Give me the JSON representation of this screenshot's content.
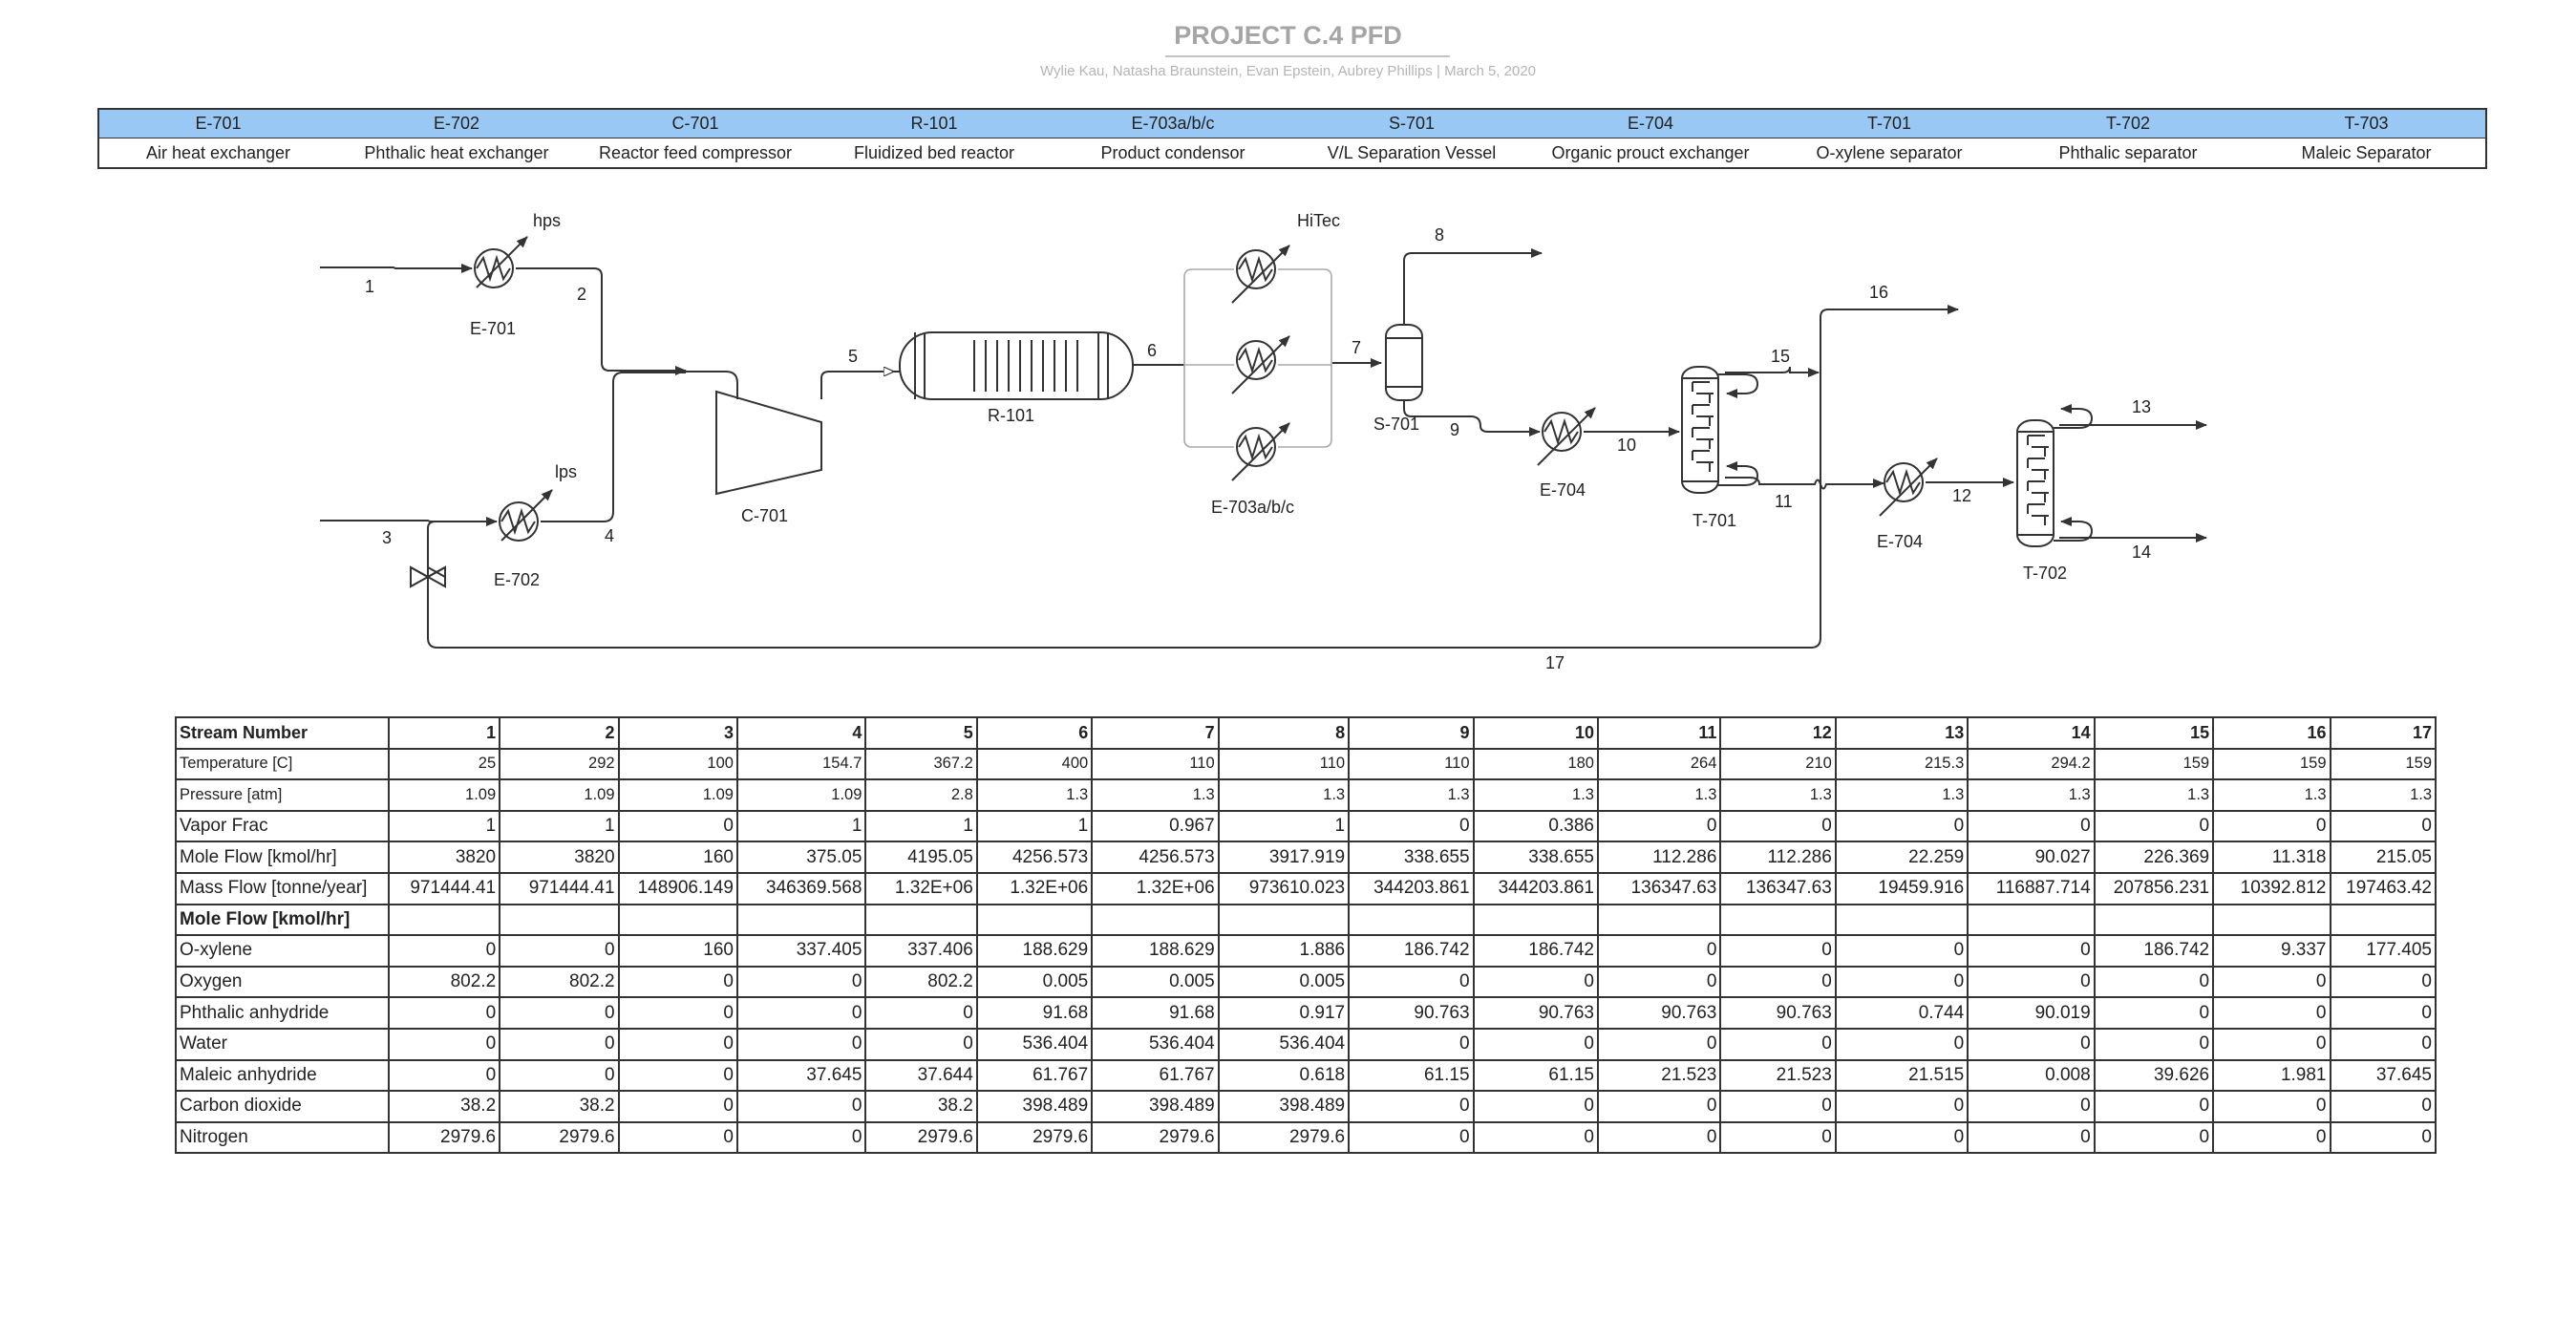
{
  "header": {
    "title": "PROJECT C.4 PFD",
    "subtitle": "Wylie Kau, Natasha Braunstein, Evan Epstein, Aubrey Phillips  |  March 5, 2020"
  },
  "equipment": [
    {
      "tag": "E-701",
      "desc": "Air heat exchanger"
    },
    {
      "tag": "E-702",
      "desc": "Phthalic heat exchanger"
    },
    {
      "tag": "C-701",
      "desc": "Reactor feed compressor"
    },
    {
      "tag": "R-101",
      "desc": "Fluidized bed reactor"
    },
    {
      "tag": "E-703a/b/c",
      "desc": "Product condensor"
    },
    {
      "tag": "S-701",
      "desc": "V/L Separation Vessel"
    },
    {
      "tag": "E-704",
      "desc": "Organic prouct exchanger"
    },
    {
      "tag": "T-701",
      "desc": "O-xylene separator"
    },
    {
      "tag": "T-702",
      "desc": "Phthalic separator"
    },
    {
      "tag": "T-703",
      "desc": "Maleic Separator"
    }
  ],
  "diagram": {
    "utility_labels": {
      "hps": "hps",
      "lps": "lps",
      "hitec": "HiTec"
    },
    "unit_labels": {
      "e701": "E-701",
      "e702": "E-702",
      "c701": "C-701",
      "r101": "R-101",
      "e703": "E-703a/b/c",
      "s701": "S-701",
      "e704a": "E-704",
      "t701": "T-701",
      "e704b": "E-704",
      "t702": "T-702"
    },
    "stream_numbers": {
      "s1": "1",
      "s2": "2",
      "s3": "3",
      "s4": "4",
      "s5": "5",
      "s6": "6",
      "s7": "7",
      "s8": "8",
      "s9": "9",
      "s10": "10",
      "s11": "11",
      "s12": "12",
      "s13": "13",
      "s14": "14",
      "s15": "15",
      "s16": "16",
      "s17": "17"
    }
  },
  "stream_table": {
    "header_label": "Stream Number",
    "stream_numbers": [
      "1",
      "2",
      "3",
      "4",
      "5",
      "6",
      "7",
      "8",
      "9",
      "10",
      "11",
      "12",
      "13",
      "14",
      "15",
      "16",
      "17"
    ],
    "rows": [
      {
        "label": "Temperature [C]",
        "small": true,
        "values": [
          "25",
          "292",
          "100",
          "154.7",
          "367.2",
          "400",
          "110",
          "110",
          "110",
          "180",
          "264",
          "210",
          "215.3",
          "294.2",
          "159",
          "159",
          "159"
        ]
      },
      {
        "label": "Pressure [atm]",
        "small": true,
        "values": [
          "1.09",
          "1.09",
          "1.09",
          "1.09",
          "2.8",
          "1.3",
          "1.3",
          "1.3",
          "1.3",
          "1.3",
          "1.3",
          "1.3",
          "1.3",
          "1.3",
          "1.3",
          "1.3",
          "1.3"
        ]
      },
      {
        "label": "Vapor Frac",
        "values": [
          "1",
          "1",
          "0",
          "1",
          "1",
          "1",
          "0.967",
          "1",
          "0",
          "0.386",
          "0",
          "0",
          "0",
          "0",
          "0",
          "0",
          "0"
        ]
      },
      {
        "label": "Mole Flow [kmol/hr]",
        "values": [
          "3820",
          "3820",
          "160",
          "375.05",
          "4195.05",
          "4256.573",
          "4256.573",
          "3917.919",
          "338.655",
          "338.655",
          "112.286",
          "112.286",
          "22.259",
          "90.027",
          "226.369",
          "11.318",
          "215.05"
        ]
      },
      {
        "label": "Mass Flow [tonne/year]",
        "values": [
          "971444.41",
          "971444.41",
          "148906.149",
          "346369.568",
          "1.32E+06",
          "1.32E+06",
          "1.32E+06",
          "973610.023",
          "344203.861",
          "344203.861",
          "136347.63",
          "136347.63",
          "19459.916",
          "116887.714",
          "207856.231",
          "10392.812",
          "197463.42"
        ]
      },
      {
        "label": "Mole Flow [kmol/hr]",
        "section": true,
        "values": [
          "",
          "",
          "",
          "",
          "",
          "",
          "",
          "",
          "",
          "",
          "",
          "",
          "",
          "",
          "",
          "",
          ""
        ]
      },
      {
        "label": "O-xylene",
        "values": [
          "0",
          "0",
          "160",
          "337.405",
          "337.406",
          "188.629",
          "188.629",
          "1.886",
          "186.742",
          "186.742",
          "0",
          "0",
          "0",
          "0",
          "186.742",
          "9.337",
          "177.405"
        ]
      },
      {
        "label": "Oxygen",
        "values": [
          "802.2",
          "802.2",
          "0",
          "0",
          "802.2",
          "0.005",
          "0.005",
          "0.005",
          "0",
          "0",
          "0",
          "0",
          "0",
          "0",
          "0",
          "0",
          "0"
        ]
      },
      {
        "label": "Phthalic anhydride",
        "values": [
          "0",
          "0",
          "0",
          "0",
          "0",
          "91.68",
          "91.68",
          "0.917",
          "90.763",
          "90.763",
          "90.763",
          "90.763",
          "0.744",
          "90.019",
          "0",
          "0",
          "0"
        ]
      },
      {
        "label": "Water",
        "values": [
          "0",
          "0",
          "0",
          "0",
          "0",
          "536.404",
          "536.404",
          "536.404",
          "0",
          "0",
          "0",
          "0",
          "0",
          "0",
          "0",
          "0",
          "0"
        ]
      },
      {
        "label": "Maleic anhydride",
        "values": [
          "0",
          "0",
          "0",
          "37.645",
          "37.644",
          "61.767",
          "61.767",
          "0.618",
          "61.15",
          "61.15",
          "21.523",
          "21.523",
          "21.515",
          "0.008",
          "39.626",
          "1.981",
          "37.645"
        ]
      },
      {
        "label": "Carbon dioxide",
        "values": [
          "38.2",
          "38.2",
          "0",
          "0",
          "38.2",
          "398.489",
          "398.489",
          "398.489",
          "0",
          "0",
          "0",
          "0",
          "0",
          "0",
          "0",
          "0",
          "0"
        ]
      },
      {
        "label": "Nitrogen",
        "values": [
          "2979.6",
          "2979.6",
          "0",
          "0",
          "2979.6",
          "2979.6",
          "2979.6",
          "2979.6",
          "0",
          "0",
          "0",
          "0",
          "0",
          "0",
          "0",
          "0",
          "0"
        ]
      }
    ]
  }
}
